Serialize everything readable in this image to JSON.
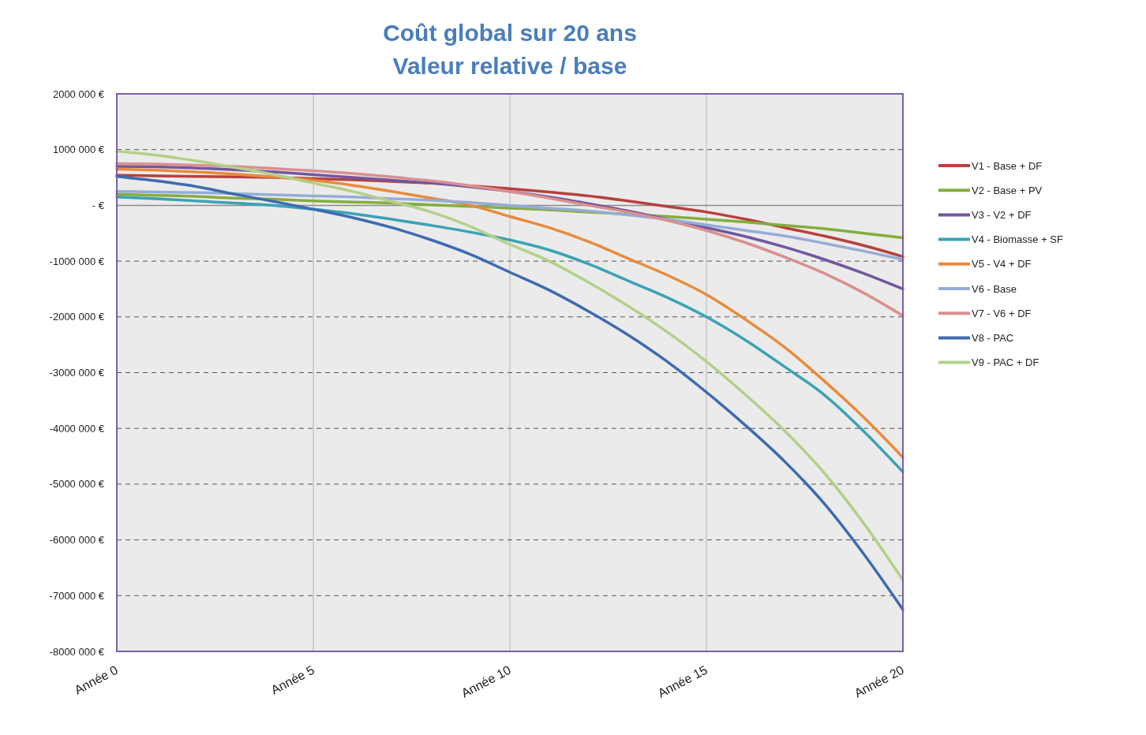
{
  "chart_data": {
    "type": "line",
    "title": "Coût global sur 20 ans",
    "subtitle": "Valeur relative / base",
    "categories": [
      "Année 0",
      null,
      null,
      null,
      null,
      "Année 5",
      null,
      null,
      null,
      null,
      "Année 10",
      null,
      null,
      null,
      null,
      "Année 15",
      null,
      null,
      null,
      null,
      "Année 20"
    ],
    "series": [
      {
        "name": "V1 - Base + DF",
        "color": "#b8403c",
        "values": [
          540000,
          530000,
          520000,
          510000,
          500000,
          480000,
          460000,
          430000,
          400000,
          350000,
          300000,
          240000,
          170000,
          80000,
          -20000,
          -120000,
          -250000,
          -400000,
          -550000,
          -720000,
          -920000
        ]
      },
      {
        "name": "V2 - Base + PV",
        "color": "#86ad3e",
        "values": [
          200000,
          180000,
          160000,
          130000,
          110000,
          80000,
          60000,
          40000,
          10000,
          -20000,
          -50000,
          -80000,
          -120000,
          -160000,
          -200000,
          -250000,
          -300000,
          -360000,
          -420000,
          -500000,
          -580000
        ]
      },
      {
        "name": "V3 - V2 + DF",
        "color": "#7256a0",
        "values": [
          700000,
          690000,
          670000,
          640000,
          600000,
          550000,
          500000,
          450000,
          400000,
          330000,
          250000,
          150000,
          30000,
          -100000,
          -250000,
          -400000,
          -560000,
          -750000,
          -970000,
          -1220000,
          -1500000
        ]
      },
      {
        "name": "V4 - Biomasse + SF",
        "color": "#3aa2b6",
        "values": [
          150000,
          120000,
          80000,
          40000,
          0,
          -70000,
          -150000,
          -250000,
          -360000,
          -480000,
          -620000,
          -800000,
          -1050000,
          -1350000,
          -1650000,
          -2000000,
          -2420000,
          -2900000,
          -3400000,
          -4050000,
          -4780000
        ]
      },
      {
        "name": "V5 - V4 + DF",
        "color": "#ea8a3a",
        "values": [
          650000,
          630000,
          600000,
          560000,
          510000,
          450000,
          360000,
          250000,
          130000,
          0,
          -200000,
          -400000,
          -650000,
          -950000,
          -1250000,
          -1600000,
          -2050000,
          -2550000,
          -3150000,
          -3800000,
          -4520000
        ]
      },
      {
        "name": "V6 - Base",
        "color": "#95acd6",
        "values": [
          250000,
          240000,
          230000,
          210000,
          190000,
          170000,
          150000,
          120000,
          90000,
          50000,
          0,
          -50000,
          -100000,
          -170000,
          -250000,
          -350000,
          -450000,
          -550000,
          -680000,
          -820000,
          -970000
        ]
      },
      {
        "name": "V7 - V6 + DF",
        "color": "#d9908e",
        "values": [
          750000,
          740000,
          720000,
          700000,
          660000,
          620000,
          570000,
          510000,
          440000,
          350000,
          250000,
          130000,
          0,
          -120000,
          -270000,
          -450000,
          -670000,
          -930000,
          -1220000,
          -1570000,
          -1980000
        ]
      },
      {
        "name": "V8 - PAC",
        "color": "#3d6bb0",
        "values": [
          520000,
          440000,
          340000,
          200000,
          70000,
          -70000,
          -220000,
          -400000,
          -620000,
          -880000,
          -1200000,
          -1520000,
          -1900000,
          -2320000,
          -2800000,
          -3350000,
          -3950000,
          -4600000,
          -5350000,
          -6250000,
          -7250000
        ]
      },
      {
        "name": "V9 - PAC + DF",
        "color": "#b3d08a",
        "values": [
          970000,
          900000,
          800000,
          680000,
          550000,
          400000,
          250000,
          70000,
          -120000,
          -380000,
          -700000,
          -1000000,
          -1380000,
          -1800000,
          -2270000,
          -2800000,
          -3400000,
          -4050000,
          -4800000,
          -5700000,
          -6720000
        ]
      }
    ],
    "ylim": [
      -8000000,
      2000000
    ],
    "yticks": [
      {
        "value": -8000000,
        "label": "-8000 000 €"
      },
      {
        "value": -7000000,
        "label": "-7000 000 €"
      },
      {
        "value": -6000000,
        "label": "-6000 000 €"
      },
      {
        "value": -5000000,
        "label": "-5000 000 €"
      },
      {
        "value": -4000000,
        "label": "-4000 000 €"
      },
      {
        "value": -3000000,
        "label": "-3000 000 €"
      },
      {
        "value": -2000000,
        "label": "-2000 000 €"
      },
      {
        "value": -1000000,
        "label": "-1000 000 €"
      },
      {
        "value": 0,
        "label": "-   €"
      },
      {
        "value": 1000000,
        "label": "1000 000 €"
      },
      {
        "value": 2000000,
        "label": "2000 000 €"
      }
    ],
    "grid": true,
    "legend": "right"
  }
}
